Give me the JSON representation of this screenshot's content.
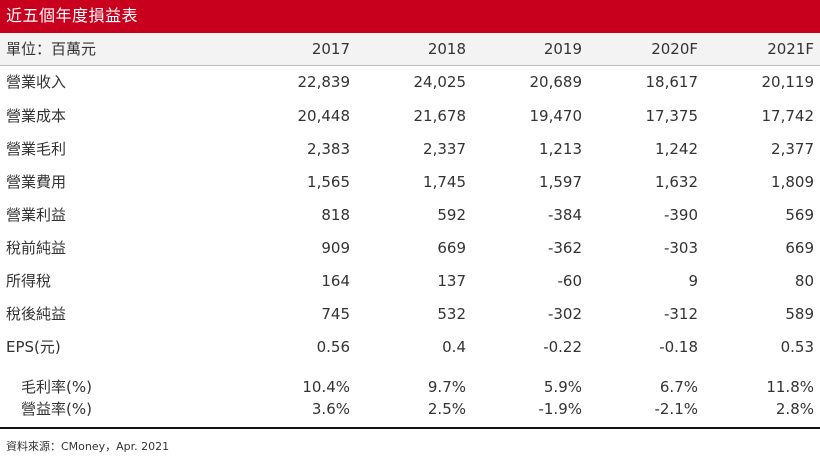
{
  "title": "近五個年度損益表",
  "table": {
    "header": [
      "單位：百萬元",
      "2017",
      "2018",
      "2019",
      "2020F",
      "2021F"
    ],
    "rows": [
      {
        "label": "營業收入",
        "values": [
          "22,839",
          "24,025",
          "20,689",
          "18,617",
          "20,119"
        ]
      },
      {
        "label": "營業成本",
        "values": [
          "20,448",
          "21,678",
          "19,470",
          "17,375",
          "17,742"
        ]
      },
      {
        "label": "營業毛利",
        "values": [
          "2,383",
          "2,337",
          "1,213",
          "1,242",
          "2,377"
        ]
      },
      {
        "label": "營業費用",
        "values": [
          "1,565",
          "1,745",
          "1,597",
          "1,632",
          "1,809"
        ]
      },
      {
        "label": "營業利益",
        "values": [
          "818",
          "592",
          "-384",
          "-390",
          "569"
        ]
      },
      {
        "label": "稅前純益",
        "values": [
          "909",
          "669",
          "-362",
          "-303",
          "669"
        ]
      },
      {
        "label": "所得稅",
        "values": [
          "164",
          "137",
          "-60",
          "9",
          "80"
        ]
      },
      {
        "label": "稅後純益",
        "values": [
          "745",
          "532",
          "-302",
          "-312",
          "589"
        ]
      },
      {
        "label": "EPS(元)",
        "values": [
          "0.56",
          "0.4",
          "-0.22",
          "-0.18",
          "0.53"
        ]
      }
    ],
    "ratios": [
      {
        "label": "毛利率(%)",
        "values": [
          "10.4%",
          "9.7%",
          "5.9%",
          "6.7%",
          "11.8%"
        ]
      },
      {
        "label": "營益率(%)",
        "values": [
          "3.6%",
          "2.5%",
          "-1.9%",
          "-2.1%",
          "2.8%"
        ]
      }
    ]
  },
  "source": "資料來源：CMoney，Apr. 2021",
  "colors": {
    "title_bar": "#c8001e",
    "header_bg": "#f3f3f3",
    "rule": "#111111"
  }
}
